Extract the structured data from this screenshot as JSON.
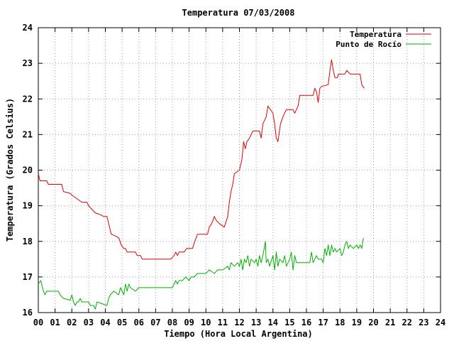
{
  "chart_data": {
    "type": "line",
    "title": "Temperatura 07/03/2008",
    "xlabel": "Tiempo (Hora Local Argentina)",
    "ylabel": "Temperatura (Grados Celsius)",
    "xlim": [
      0,
      24
    ],
    "ylim": [
      16,
      24
    ],
    "x_ticks": [
      "00",
      "01",
      "02",
      "03",
      "04",
      "05",
      "06",
      "07",
      "08",
      "09",
      "10",
      "11",
      "12",
      "13",
      "14",
      "15",
      "16",
      "17",
      "18",
      "19",
      "20",
      "21",
      "22",
      "23",
      "24"
    ],
    "y_ticks": [
      "16",
      "17",
      "18",
      "19",
      "20",
      "21",
      "22",
      "23",
      "24"
    ],
    "grid": true,
    "legend_position": "top-right",
    "series": [
      {
        "name": "Temperatura",
        "color": "#e00000",
        "points": [
          [
            0.0,
            19.9
          ],
          [
            0.1,
            19.7
          ],
          [
            0.5,
            19.7
          ],
          [
            0.6,
            19.6
          ],
          [
            1.1,
            19.6
          ],
          [
            1.4,
            19.6
          ],
          [
            1.5,
            19.4
          ],
          [
            1.9,
            19.35
          ],
          [
            2.0,
            19.3
          ],
          [
            2.3,
            19.2
          ],
          [
            2.6,
            19.1
          ],
          [
            2.9,
            19.1
          ],
          [
            3.0,
            19.0
          ],
          [
            3.2,
            18.9
          ],
          [
            3.4,
            18.8
          ],
          [
            3.7,
            18.75
          ],
          [
            3.9,
            18.7
          ],
          [
            4.1,
            18.7
          ],
          [
            4.2,
            18.5
          ],
          [
            4.35,
            18.2
          ],
          [
            4.6,
            18.15
          ],
          [
            4.8,
            18.1
          ],
          [
            4.95,
            17.9
          ],
          [
            5.1,
            17.8
          ],
          [
            5.2,
            17.8
          ],
          [
            5.3,
            17.7
          ],
          [
            5.8,
            17.7
          ],
          [
            5.9,
            17.6
          ],
          [
            6.1,
            17.6
          ],
          [
            6.2,
            17.5
          ],
          [
            7.9,
            17.5
          ],
          [
            8.1,
            17.6
          ],
          [
            8.2,
            17.7
          ],
          [
            8.3,
            17.6
          ],
          [
            8.4,
            17.7
          ],
          [
            8.7,
            17.7
          ],
          [
            8.85,
            17.8
          ],
          [
            9.2,
            17.8
          ],
          [
            9.3,
            17.95
          ],
          [
            9.5,
            18.2
          ],
          [
            10.1,
            18.2
          ],
          [
            10.2,
            18.4
          ],
          [
            10.35,
            18.5
          ],
          [
            10.5,
            18.7
          ],
          [
            10.6,
            18.6
          ],
          [
            10.8,
            18.5
          ],
          [
            11.1,
            18.4
          ],
          [
            11.3,
            18.7
          ],
          [
            11.4,
            19.1
          ],
          [
            11.5,
            19.4
          ],
          [
            11.6,
            19.6
          ],
          [
            11.7,
            19.9
          ],
          [
            12.0,
            20.0
          ],
          [
            12.15,
            20.3
          ],
          [
            12.25,
            20.8
          ],
          [
            12.35,
            20.6
          ],
          [
            12.45,
            20.8
          ],
          [
            12.6,
            20.9
          ],
          [
            12.8,
            21.1
          ],
          [
            13.2,
            21.1
          ],
          [
            13.3,
            20.9
          ],
          [
            13.4,
            21.3
          ],
          [
            13.6,
            21.5
          ],
          [
            13.7,
            21.8
          ],
          [
            14.0,
            21.6
          ],
          [
            14.1,
            21.3
          ],
          [
            14.2,
            20.9
          ],
          [
            14.3,
            20.8
          ],
          [
            14.45,
            21.3
          ],
          [
            14.6,
            21.5
          ],
          [
            14.8,
            21.7
          ],
          [
            15.2,
            21.7
          ],
          [
            15.3,
            21.6
          ],
          [
            15.5,
            21.8
          ],
          [
            15.6,
            22.1
          ],
          [
            16.4,
            22.1
          ],
          [
            16.5,
            22.3
          ],
          [
            16.6,
            22.2
          ],
          [
            16.7,
            21.9
          ],
          [
            16.8,
            22.3
          ],
          [
            16.9,
            22.35
          ],
          [
            17.3,
            22.4
          ],
          [
            17.4,
            22.8
          ],
          [
            17.5,
            23.1
          ],
          [
            17.6,
            22.8
          ],
          [
            17.7,
            22.6
          ],
          [
            17.85,
            22.6
          ],
          [
            17.9,
            22.7
          ],
          [
            18.3,
            22.7
          ],
          [
            18.4,
            22.8
          ],
          [
            18.6,
            22.7
          ],
          [
            19.2,
            22.7
          ],
          [
            19.3,
            22.4
          ],
          [
            19.45,
            22.3
          ]
        ]
      },
      {
        "name": "Punto de Rocío",
        "color": "#00b000",
        "points": [
          [
            0.0,
            16.8
          ],
          [
            0.15,
            16.9
          ],
          [
            0.3,
            16.6
          ],
          [
            0.4,
            16.5
          ],
          [
            0.5,
            16.6
          ],
          [
            1.0,
            16.6
          ],
          [
            1.2,
            16.6
          ],
          [
            1.3,
            16.5
          ],
          [
            1.5,
            16.4
          ],
          [
            1.9,
            16.35
          ],
          [
            2.0,
            16.5
          ],
          [
            2.1,
            16.3
          ],
          [
            2.2,
            16.2
          ],
          [
            2.3,
            16.3
          ],
          [
            2.4,
            16.3
          ],
          [
            2.5,
            16.4
          ],
          [
            2.6,
            16.3
          ],
          [
            3.0,
            16.3
          ],
          [
            3.1,
            16.2
          ],
          [
            3.3,
            16.2
          ],
          [
            3.4,
            16.1
          ],
          [
            3.5,
            16.3
          ],
          [
            3.8,
            16.25
          ],
          [
            4.1,
            16.2
          ],
          [
            4.2,
            16.4
          ],
          [
            4.3,
            16.5
          ],
          [
            4.4,
            16.55
          ],
          [
            4.5,
            16.6
          ],
          [
            4.8,
            16.5
          ],
          [
            4.9,
            16.7
          ],
          [
            5.1,
            16.5
          ],
          [
            5.2,
            16.8
          ],
          [
            5.3,
            16.6
          ],
          [
            5.4,
            16.8
          ],
          [
            5.5,
            16.7
          ],
          [
            5.8,
            16.6
          ],
          [
            6.0,
            16.7
          ],
          [
            7.0,
            16.7
          ],
          [
            8.0,
            16.7
          ],
          [
            8.1,
            16.8
          ],
          [
            8.2,
            16.9
          ],
          [
            8.3,
            16.8
          ],
          [
            8.4,
            16.9
          ],
          [
            8.6,
            16.9
          ],
          [
            8.8,
            17.0
          ],
          [
            9.0,
            16.9
          ],
          [
            9.1,
            17.0
          ],
          [
            9.3,
            17.0
          ],
          [
            9.5,
            17.1
          ],
          [
            10.0,
            17.1
          ],
          [
            10.2,
            17.2
          ],
          [
            10.5,
            17.1
          ],
          [
            10.7,
            17.2
          ],
          [
            11.0,
            17.2
          ],
          [
            11.3,
            17.3
          ],
          [
            11.4,
            17.2
          ],
          [
            11.5,
            17.4
          ],
          [
            11.7,
            17.3
          ],
          [
            11.9,
            17.4
          ],
          [
            12.0,
            17.3
          ],
          [
            12.1,
            17.5
          ],
          [
            12.2,
            17.2
          ],
          [
            12.3,
            17.5
          ],
          [
            12.4,
            17.4
          ],
          [
            12.5,
            17.6
          ],
          [
            12.6,
            17.3
          ],
          [
            12.7,
            17.5
          ],
          [
            12.9,
            17.4
          ],
          [
            13.0,
            17.5
          ],
          [
            13.1,
            17.3
          ],
          [
            13.2,
            17.6
          ],
          [
            13.3,
            17.4
          ],
          [
            13.4,
            17.6
          ],
          [
            13.55,
            18.0
          ],
          [
            13.6,
            17.4
          ],
          [
            13.7,
            17.5
          ],
          [
            13.8,
            17.3
          ],
          [
            14.0,
            17.6
          ],
          [
            14.1,
            17.2
          ],
          [
            14.2,
            17.7
          ],
          [
            14.3,
            17.3
          ],
          [
            14.4,
            17.5
          ],
          [
            14.6,
            17.4
          ],
          [
            14.7,
            17.6
          ],
          [
            14.8,
            17.3
          ],
          [
            15.0,
            17.5
          ],
          [
            15.1,
            17.7
          ],
          [
            15.2,
            17.2
          ],
          [
            15.3,
            17.6
          ],
          [
            15.4,
            17.4
          ],
          [
            15.6,
            17.4
          ],
          [
            16.2,
            17.4
          ],
          [
            16.3,
            17.7
          ],
          [
            16.4,
            17.4
          ],
          [
            16.6,
            17.6
          ],
          [
            16.7,
            17.5
          ],
          [
            16.9,
            17.5
          ],
          [
            17.0,
            17.4
          ],
          [
            17.1,
            17.8
          ],
          [
            17.2,
            17.6
          ],
          [
            17.3,
            17.9
          ],
          [
            17.4,
            17.6
          ],
          [
            17.5,
            17.9
          ],
          [
            17.6,
            17.7
          ],
          [
            17.7,
            17.8
          ],
          [
            17.8,
            17.7
          ],
          [
            18.0,
            17.8
          ],
          [
            18.1,
            17.6
          ],
          [
            18.2,
            17.7
          ],
          [
            18.3,
            17.9
          ],
          [
            18.4,
            18.0
          ],
          [
            18.5,
            17.8
          ],
          [
            18.6,
            17.9
          ],
          [
            18.8,
            17.8
          ],
          [
            19.0,
            17.9
          ],
          [
            19.1,
            17.8
          ],
          [
            19.2,
            17.9
          ],
          [
            19.3,
            17.8
          ],
          [
            19.4,
            18.1
          ]
        ]
      }
    ]
  }
}
